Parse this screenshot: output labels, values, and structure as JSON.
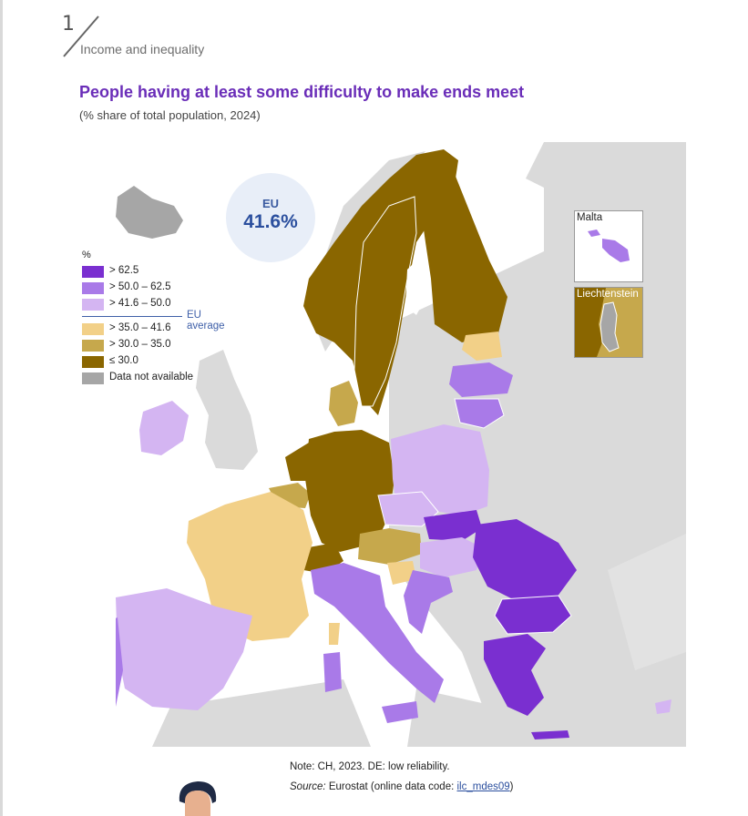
{
  "chapter": {
    "number": "1",
    "title": "Income and inequality"
  },
  "title": "People having at least some difficulty to make ends meet",
  "subtitle": "(% share of total population, 2024)",
  "eu_average": {
    "label": "EU",
    "value": "41.6%"
  },
  "legend": {
    "unit": "%",
    "items": [
      {
        "label": "> 62.5",
        "color": "#7a2fd0"
      },
      {
        "label": "> 50.0 – 62.5",
        "color": "#a97ae8"
      },
      {
        "label": "> 41.6 – 50.0",
        "color": "#d4b5f2"
      },
      {
        "label": "> 35.0 – 41.6",
        "color": "#f2d088"
      },
      {
        "label": "> 30.0 – 35.0",
        "color": "#c6a84c"
      },
      {
        "label": "≤ 30.0",
        "color": "#8a6600"
      },
      {
        "label": "Data not available",
        "color": "#a6a6a6"
      }
    ],
    "eu_average_label": "EU average"
  },
  "insets": [
    {
      "name": "Malta"
    },
    {
      "name": "Liechtenstein"
    }
  ],
  "colors": {
    "non_eu": "#dadada",
    "sea": "#ffffff",
    "title": "#6a2db8",
    "accent": "#2b4f9e"
  },
  "note": "Note: CH, 2023. DE: low reliability.",
  "source": {
    "prefix": "Source:",
    "text": " Eurostat (online data code: ",
    "link": "ilc_mdes09",
    "suffix": ")"
  }
}
